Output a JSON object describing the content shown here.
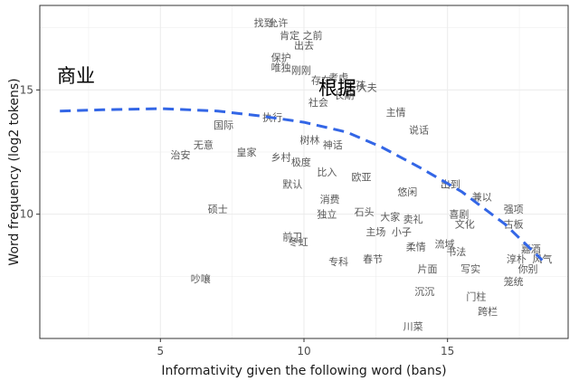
{
  "chart_data": {
    "type": "scatter",
    "xlabel": "Informativity given the following word (bans)",
    "ylabel": "Word frequency (log2 tokens)",
    "xlim": [
      0.8,
      19.2
    ],
    "ylim": [
      5.0,
      18.4
    ],
    "x_ticks": [
      5,
      10,
      15
    ],
    "y_ticks": [
      10,
      15
    ],
    "grid": true,
    "trend_line": {
      "style": "dashed",
      "color": "#3366e6",
      "x": [
        1.5,
        3.0,
        5.0,
        7.0,
        8.5,
        10.0,
        11.5,
        12.7,
        14.0,
        15.5,
        17.0,
        18.3
      ],
      "y": [
        14.15,
        14.2,
        14.25,
        14.15,
        13.95,
        13.7,
        13.3,
        12.7,
        11.9,
        10.9,
        9.6,
        8.15
      ]
    },
    "highlighted_labels": [
      {
        "text": "商业",
        "x": 1.4,
        "y": 15.6
      },
      {
        "text": "根据",
        "x": 10.5,
        "y": 15.1
      }
    ],
    "points": [
      {
        "text": "找到",
        "x": 8.6,
        "y": 17.7
      },
      {
        "text": "允许",
        "x": 9.1,
        "y": 17.7
      },
      {
        "text": "肯定",
        "x": 9.5,
        "y": 17.2
      },
      {
        "text": "之前",
        "x": 10.3,
        "y": 17.2
      },
      {
        "text": "出去",
        "x": 10.0,
        "y": 16.8
      },
      {
        "text": "保护",
        "x": 9.2,
        "y": 16.3
      },
      {
        "text": "唯独",
        "x": 9.2,
        "y": 15.9
      },
      {
        "text": "刚刚",
        "x": 9.9,
        "y": 15.8
      },
      {
        "text": "存在",
        "x": 10.6,
        "y": 15.4
      },
      {
        "text": "考虑",
        "x": 11.2,
        "y": 15.5
      },
      {
        "text": "男孩",
        "x": 11.8,
        "y": 15.2
      },
      {
        "text": "长期",
        "x": 11.4,
        "y": 14.8
      },
      {
        "text": "社会",
        "x": 10.5,
        "y": 14.5
      },
      {
        "text": "执行",
        "x": 8.9,
        "y": 13.9
      },
      {
        "text": "国际",
        "x": 7.2,
        "y": 13.6
      },
      {
        "text": "皇家",
        "x": 8.0,
        "y": 12.5
      },
      {
        "text": "无意",
        "x": 6.5,
        "y": 12.8
      },
      {
        "text": "治安",
        "x": 5.7,
        "y": 12.4
      },
      {
        "text": "乡村",
        "x": 9.2,
        "y": 12.3
      },
      {
        "text": "极度",
        "x": 9.9,
        "y": 12.1
      },
      {
        "text": "树林",
        "x": 10.2,
        "y": 13.0
      },
      {
        "text": "神话",
        "x": 11.0,
        "y": 12.8
      },
      {
        "text": "默认",
        "x": 9.6,
        "y": 11.2
      },
      {
        "text": "比入",
        "x": 10.8,
        "y": 11.7
      },
      {
        "text": "欧亚",
        "x": 12.0,
        "y": 11.5
      },
      {
        "text": "消费",
        "x": 10.9,
        "y": 10.6
      },
      {
        "text": "独立",
        "x": 10.8,
        "y": 10.0
      },
      {
        "text": "石头",
        "x": 12.1,
        "y": 10.1
      },
      {
        "text": "悠闲",
        "x": 13.6,
        "y": 10.9
      },
      {
        "text": "大家",
        "x": 13.0,
        "y": 9.9
      },
      {
        "text": "主场",
        "x": 12.5,
        "y": 9.3
      },
      {
        "text": "小子",
        "x": 13.4,
        "y": 9.3
      },
      {
        "text": "卖礼",
        "x": 13.8,
        "y": 9.8
      },
      {
        "text": "前卫",
        "x": 9.6,
        "y": 9.1
      },
      {
        "text": "冬虹",
        "x": 9.8,
        "y": 8.9
      },
      {
        "text": "硕士",
        "x": 7.0,
        "y": 10.2
      },
      {
        "text": "专科",
        "x": 11.2,
        "y": 8.1
      },
      {
        "text": "春节",
        "x": 12.4,
        "y": 8.2
      },
      {
        "text": "柔情",
        "x": 13.9,
        "y": 8.7
      },
      {
        "text": "流域",
        "x": 14.9,
        "y": 8.8
      },
      {
        "text": "书法",
        "x": 15.3,
        "y": 8.5
      },
      {
        "text": "片面",
        "x": 14.3,
        "y": 7.8
      },
      {
        "text": "写实",
        "x": 15.8,
        "y": 7.8
      },
      {
        "text": "沉沉",
        "x": 14.2,
        "y": 6.9
      },
      {
        "text": "门柱",
        "x": 16.0,
        "y": 6.7
      },
      {
        "text": "跨栏",
        "x": 16.4,
        "y": 6.1
      },
      {
        "text": "川菜",
        "x": 13.8,
        "y": 5.5
      },
      {
        "text": "笼统",
        "x": 17.3,
        "y": 7.3
      },
      {
        "text": "强项",
        "x": 17.3,
        "y": 10.2
      },
      {
        "text": "古板",
        "x": 17.3,
        "y": 9.6
      },
      {
        "text": "嘉酒",
        "x": 17.9,
        "y": 8.6
      },
      {
        "text": "淳朴",
        "x": 17.4,
        "y": 8.2
      },
      {
        "text": "风气",
        "x": 18.3,
        "y": 8.2
      },
      {
        "text": "你别",
        "x": 17.8,
        "y": 7.8
      },
      {
        "text": "吵嚷",
        "x": 6.4,
        "y": 7.4
      },
      {
        "text": "文化",
        "x": 15.6,
        "y": 9.6
      },
      {
        "text": "喜剧",
        "x": 15.4,
        "y": 10.0
      },
      {
        "text": "主情",
        "x": 13.2,
        "y": 14.1
      },
      {
        "text": "大夫",
        "x": 12.2,
        "y": 15.1
      },
      {
        "text": "说话",
        "x": 14.0,
        "y": 13.4
      },
      {
        "text": "出到",
        "x": 15.1,
        "y": 11.2
      },
      {
        "text": "兼以",
        "x": 16.2,
        "y": 10.7
      }
    ]
  }
}
